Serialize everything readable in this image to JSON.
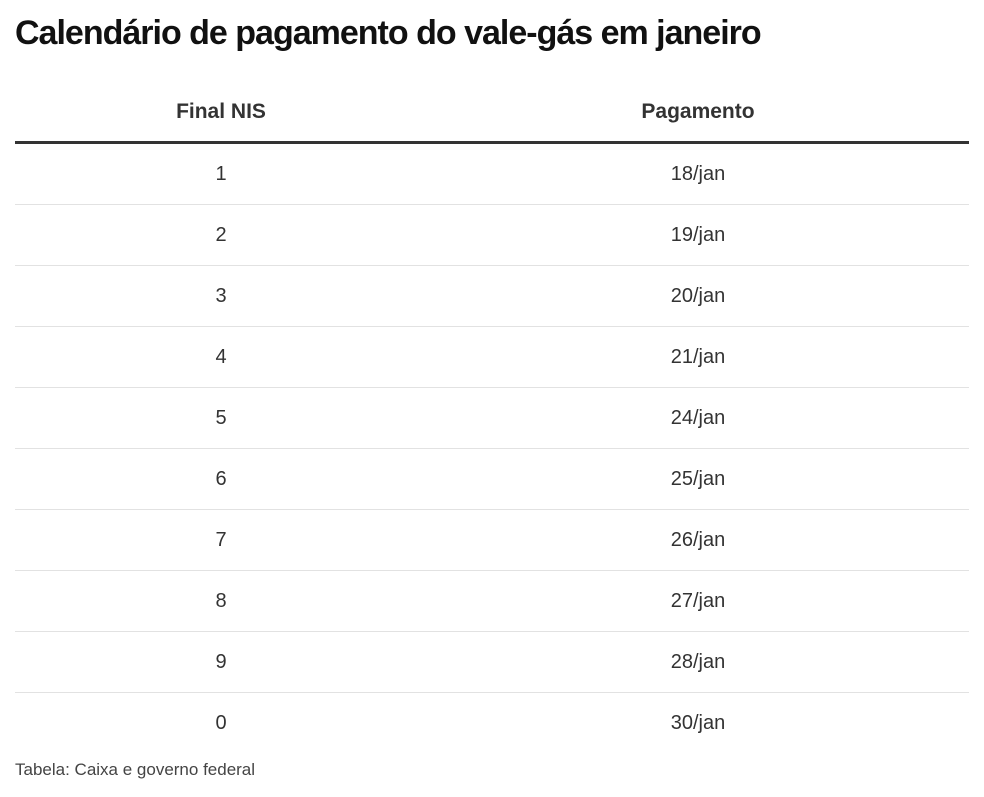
{
  "header": {
    "title": "Calendário de pagamento do vale-gás em janeiro"
  },
  "table": {
    "columns": [
      "Final NIS",
      "Pagamento"
    ],
    "rows": [
      [
        "1",
        "18/jan"
      ],
      [
        "2",
        "19/jan"
      ],
      [
        "3",
        "20/jan"
      ],
      [
        "4",
        "21/jan"
      ],
      [
        "5",
        "24/jan"
      ],
      [
        "6",
        "25/jan"
      ],
      [
        "7",
        "26/jan"
      ],
      [
        "8",
        "27/jan"
      ],
      [
        "9",
        "28/jan"
      ],
      [
        "0",
        "30/jan"
      ]
    ]
  },
  "footer": {
    "source": "Tabela: Caixa e governo federal"
  }
}
